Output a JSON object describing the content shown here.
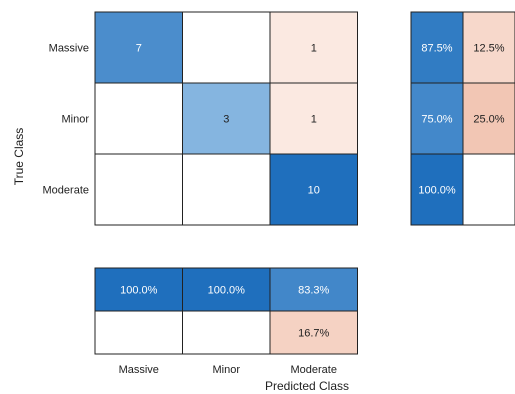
{
  "chart_data": {
    "type": "heatmap",
    "title": "",
    "xlabel": "Predicted Class",
    "ylabel": "True Class",
    "classes": [
      "Massive",
      "Minor",
      "Moderate"
    ],
    "matrix": [
      [
        7,
        null,
        1
      ],
      [
        null,
        3,
        1
      ],
      [
        null,
        null,
        10
      ]
    ],
    "row_summary": {
      "columns": 2,
      "rows": [
        [
          {
            "value": 87.5,
            "label": "87.5%"
          },
          {
            "value": 12.5,
            "label": "12.5%"
          }
        ],
        [
          {
            "value": 75.0,
            "label": "75.0%"
          },
          {
            "value": 25.0,
            "label": "25.0%"
          }
        ],
        [
          {
            "value": 100.0,
            "label": "100.0%"
          },
          {
            "value": null,
            "label": ""
          }
        ]
      ]
    },
    "column_summary": {
      "rows": [
        [
          {
            "value": 100.0,
            "label": "100.0%"
          },
          {
            "value": 100.0,
            "label": "100.0%"
          },
          {
            "value": 83.3,
            "label": "83.3%"
          }
        ],
        [
          {
            "value": null,
            "label": ""
          },
          {
            "value": null,
            "label": ""
          },
          {
            "value": 16.7,
            "label": "16.7%"
          }
        ]
      ]
    },
    "colors": {
      "correct_dark": "#1f6fbd",
      "correct_light": "#b0d3ef",
      "incorrect_dark": "#f2c6b4",
      "incorrect_light": "#fbe9e1",
      "border": "#222222",
      "dark_text": "#222222",
      "light_text": "#ffffff"
    }
  }
}
